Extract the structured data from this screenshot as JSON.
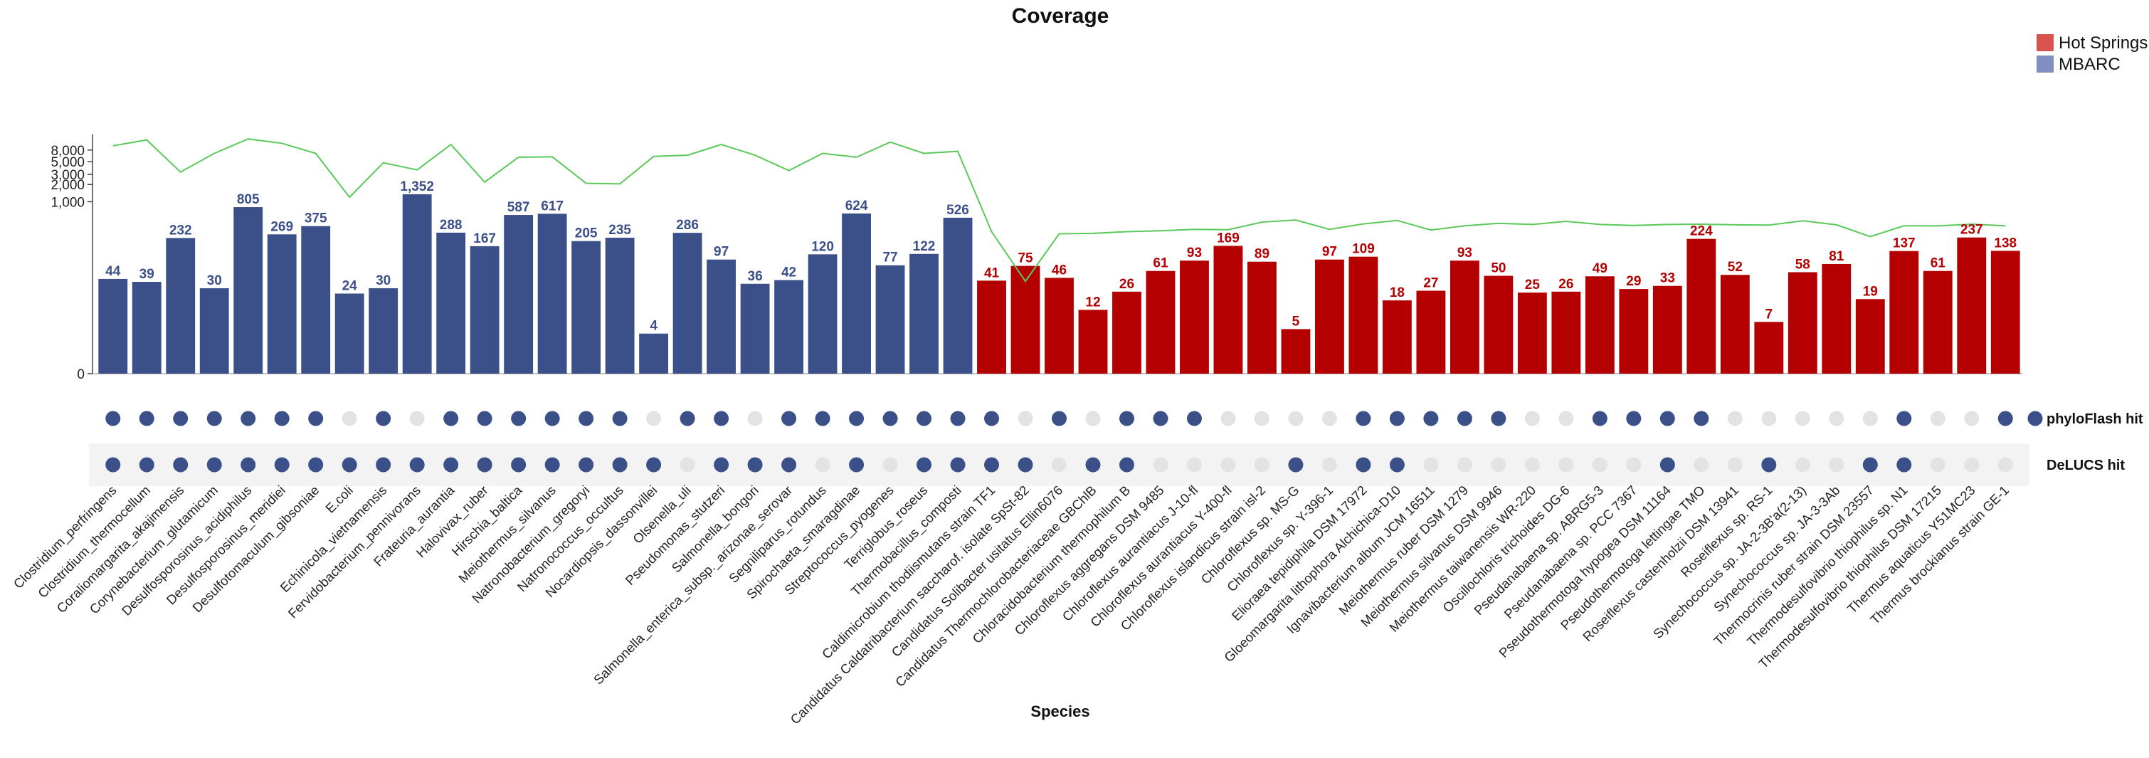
{
  "chart_data": {
    "type": "bar",
    "title": "Coverage",
    "xlabel": "Species",
    "ylabel": "",
    "yscale": "symlog",
    "yticks": [
      0,
      1000,
      2000,
      3000,
      5000,
      8000
    ],
    "ytick_labels": [
      "0",
      "1,000",
      "2,000",
      "3,000",
      "5,000",
      "8,000"
    ],
    "legend_position": "top-right",
    "groups": [
      {
        "name": "Hot Springs",
        "color": "#b40000",
        "legend_color": "#d9534f"
      },
      {
        "name": "MBARC",
        "color": "#3b5089",
        "legend_color": "#7f8fbf"
      }
    ],
    "line_color": "#5ac95a",
    "hit_color": "#3b5089",
    "miss_color": "#e3e3e3",
    "hit_rows": [
      {
        "name": "phyloFlash hit"
      },
      {
        "name": "DeLUCS hit"
      }
    ],
    "categories": [
      "Clostridium_perfringens",
      "Clostridium_thermocellum",
      "Coraliomargarita_akajimensis",
      "Corynebacterium_glutamicum",
      "Desulfosporosinus_acidiphilus",
      "Desulfosporosinus_meridiei",
      "Desulfotomaculum_gibsoniae",
      "E.coli",
      "Echinicola_vietnamensis",
      "Fervidobacterium_pennivorans",
      "Frateuria_aurantia",
      "Halovivax_ruber",
      "Hirschia_baltica",
      "Meiothermus_silvanus",
      "Natronobacterium_gregoryi",
      "Natronococcus_occultus",
      "Nocardiopsis_dassonvillei",
      "Olsenella_uli",
      "Pseudomonas_stutzeri",
      "Salmonella_bongori",
      "Salmonella_enterica_subsp._arizonae_serovar",
      "Segniliparus_rotundus",
      "Spirochaeta_smaragdinae",
      "Streptococcus_pyogenes",
      "Terriglobus_roseus",
      "Thermobacillus_composti",
      "Caldimicrobium thodiismutans strain TF1",
      "Candidatus Caldatribacterium saccharof. isolate SpSt-82",
      "Candidatus Solibacter usitatus Ellin6076",
      "Candidatus Thermochlorobacteriaceae GBChlB",
      "Chloracidobacterium thermophilum B",
      "Chloroflexus aggregans DSM 9485",
      "Chloroflexus aurantiacus J-10-fl",
      "Chloroflexus aurantiacus Y-400-fl",
      "Chloroflexus islandicus strain isl-2",
      "Chloroflexus sp. MS-G",
      "Chloroflexus sp. Y-396-1",
      "Elioraea tepidiphila DSM 17972",
      "Gloeomargarita lithophora Alchichica-D10",
      "Ignavibacterium album JCM 16511",
      "Meiothermus ruber DSM 1279",
      "Meiothermus silvanus DSM 9946",
      "Meiothermus taiwanensis WR-220",
      "Oscillochloris trichoides DG-6",
      "Pseudanabaena sp. ABRG5-3",
      "Pseudanabaena sp. PCC 7367",
      "Pseudothermotoga hypogea DSM 11164",
      "Pseudothermotoga lettingae TMO",
      "Roseiflexus castenholzii DSM 13941",
      "Roseiflexus sp. RS-1",
      "Synechococcus sp. JA-2-3B'a(2-13)",
      "Synechococcus sp. JA-3-3Ab",
      "Thermocrinis ruber strain DSM 23557",
      "Thermodesulfovibrio thiophilus sp. N1",
      "Thermodesulfovibrio thiophilus DSM 17215",
      "Thermus aquaticus Y51MC23",
      "Thermus brockianus strain GE-1"
    ],
    "group_of": [
      "MBARC",
      "MBARC",
      "MBARC",
      "MBARC",
      "MBARC",
      "MBARC",
      "MBARC",
      "MBARC",
      "MBARC",
      "MBARC",
      "MBARC",
      "MBARC",
      "MBARC",
      "MBARC",
      "MBARC",
      "MBARC",
      "MBARC",
      "MBARC",
      "MBARC",
      "MBARC",
      "MBARC",
      "MBARC",
      "MBARC",
      "MBARC",
      "MBARC",
      "MBARC",
      "Hot Springs",
      "Hot Springs",
      "Hot Springs",
      "Hot Springs",
      "Hot Springs",
      "Hot Springs",
      "Hot Springs",
      "Hot Springs",
      "Hot Springs",
      "Hot Springs",
      "Hot Springs",
      "Hot Springs",
      "Hot Springs",
      "Hot Springs",
      "Hot Springs",
      "Hot Springs",
      "Hot Springs",
      "Hot Springs",
      "Hot Springs",
      "Hot Springs",
      "Hot Springs",
      "Hot Springs",
      "Hot Springs",
      "Hot Springs",
      "Hot Springs",
      "Hot Springs",
      "Hot Springs",
      "Hot Springs",
      "Hot Springs",
      "Hot Springs",
      "Hot Springs"
    ],
    "values": [
      44,
      39,
      232,
      30,
      805,
      269,
      375,
      24,
      30,
      1352,
      288,
      167,
      587,
      617,
      205,
      235,
      4,
      286,
      97,
      36,
      42,
      120,
      624,
      77,
      122,
      526,
      41,
      75,
      46,
      12,
      26,
      61,
      93,
      169,
      89,
      5,
      97,
      109,
      18,
      27,
      93,
      50,
      25,
      26,
      49,
      29,
      33,
      224,
      52,
      7,
      58,
      81,
      19,
      137,
      61,
      237,
      138
    ],
    "value_labels": [
      "44",
      "39",
      "232",
      "30",
      "805",
      "269",
      "375",
      "24",
      "30",
      "1,352",
      "288",
      "167",
      "587",
      "617",
      "205",
      "235",
      "4",
      "286",
      "97",
      "36",
      "42",
      "120",
      "624",
      "77",
      "122",
      "526",
      "41",
      "75",
      "46",
      "12",
      "26",
      "61",
      "93",
      "169",
      "89",
      "5",
      "97",
      "109",
      "18",
      "27",
      "93",
      "50",
      "25",
      "26",
      "49",
      "29",
      "33",
      "224",
      "52",
      "7",
      "58",
      "81",
      "19",
      "137",
      "61",
      "237",
      "138"
    ],
    "line_values": [
      9500,
      12000,
      3300,
      7000,
      12500,
      10500,
      7000,
      1200,
      4800,
      3600,
      10000,
      2200,
      6000,
      6100,
      2100,
      2050,
      6200,
      6500,
      10000,
      6500,
      3500,
      7000,
      6000,
      11000,
      7000,
      7600,
      300,
      40,
      275,
      280,
      300,
      310,
      330,
      325,
      440,
      480,
      330,
      410,
      470,
      320,
      380,
      420,
      400,
      455,
      400,
      385,
      400,
      405,
      395,
      390,
      465,
      395,
      245,
      380,
      378,
      405,
      380
    ],
    "phyloflash_hits": [
      1,
      1,
      1,
      1,
      1,
      1,
      1,
      0,
      1,
      0,
      1,
      1,
      1,
      1,
      1,
      1,
      0,
      1,
      1,
      0,
      1,
      1,
      1,
      1,
      1,
      1,
      1,
      0,
      1,
      0,
      1,
      1,
      1,
      0,
      0,
      0,
      0,
      1,
      1,
      1,
      1,
      1,
      0,
      0,
      1,
      1,
      1,
      1,
      0,
      0,
      0,
      0,
      0,
      1,
      0,
      0,
      1
    ],
    "delucs_hits": [
      1,
      1,
      1,
      1,
      1,
      1,
      1,
      1,
      1,
      1,
      1,
      1,
      1,
      1,
      1,
      1,
      1,
      0,
      1,
      1,
      1,
      0,
      1,
      0,
      1,
      1,
      1,
      1,
      0,
      1,
      1,
      0,
      0,
      0,
      0,
      1,
      0,
      1,
      1,
      0,
      0,
      0,
      0,
      0,
      0,
      0,
      1,
      0,
      0,
      1,
      0,
      0,
      1,
      1,
      0,
      0,
      0
    ]
  }
}
